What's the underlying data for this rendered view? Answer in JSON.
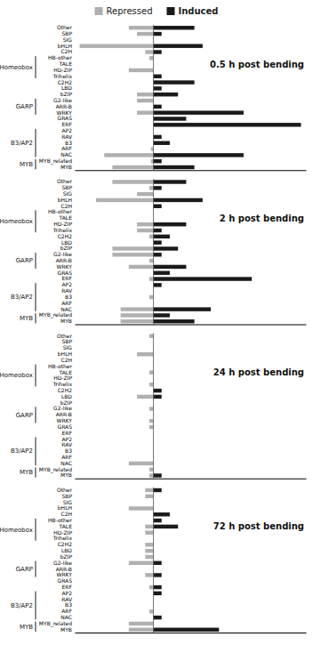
{
  "chart_data": [
    {
      "type": "bar",
      "orientation": "horizontal",
      "title": "0.5 h post bending",
      "legend": "top",
      "categories": [
        "Other",
        "SBP",
        "SIG",
        "bHLH",
        "C2H",
        "HB-other",
        "TALE",
        "HD-ZIP",
        "Trihelix",
        "C2H2",
        "LBD",
        "bZIP",
        "G2-like",
        "ARR-B",
        "WRKY",
        "GRAS",
        "ERF",
        "AP2",
        "RAV",
        "B3",
        "ARF",
        "NAC",
        "MYB_related",
        "MYB"
      ],
      "series": [
        {
          "name": "Repressed",
          "color": "#b0b0b0",
          "values": [
            3,
            2,
            0,
            9,
            1,
            0.5,
            0,
            3,
            0,
            0,
            0,
            2,
            2,
            0,
            2,
            0,
            0,
            0,
            0,
            0,
            0.3,
            6,
            0.3,
            5
          ]
        },
        {
          "name": "Induced",
          "color": "#1a1a1a",
          "values": [
            5,
            1,
            0,
            6,
            1,
            0,
            0,
            0,
            1,
            5,
            1,
            3,
            0,
            1,
            11,
            4,
            18,
            0,
            1,
            2,
            0,
            11,
            1,
            5
          ]
        }
      ],
      "xlim": [
        -9.6,
        18.6
      ],
      "xticks": [],
      "tick_labels": "y",
      "annotations": [
        {
          "text": "Homeobox",
          "from": "HB-other",
          "to": "Trihelix"
        },
        {
          "text": "GARP",
          "from": "G2-like",
          "to": "WRKY"
        },
        {
          "text": "B3/AP2",
          "from": "AP2",
          "to": "NAC"
        },
        {
          "text": "MYB",
          "from": "MYB_related",
          "to": "MYB"
        }
      ]
    },
    {
      "type": "bar",
      "orientation": "horizontal",
      "title": "2 h post bending",
      "categories": [
        "Other",
        "SBP",
        "SIG",
        "bHLH",
        "C2H",
        "HB-other",
        "TALE",
        "HD-ZIP",
        "Trihelix",
        "C2H2",
        "LBD",
        "bZIP",
        "G2-like",
        "ARR-B",
        "WRKY",
        "GRAS",
        "ERF",
        "AP2",
        "RAV",
        "B3",
        "ARF",
        "NAC",
        "MYB_related",
        "MYB"
      ],
      "series": [
        {
          "name": "Repressed",
          "color": "#b0b0b0",
          "values": [
            5,
            0.5,
            2,
            7,
            0,
            0,
            0,
            2,
            2,
            0.5,
            0,
            5,
            5,
            0.5,
            3,
            0,
            0.5,
            0,
            0,
            0.5,
            0,
            4,
            4,
            4
          ]
        },
        {
          "name": "Induced",
          "color": "#1a1a1a",
          "values": [
            4,
            1,
            0,
            6,
            1,
            0,
            0,
            4,
            1,
            2,
            1,
            3,
            1,
            0,
            4,
            2,
            12,
            1,
            0,
            0,
            0,
            7,
            2,
            5
          ]
        }
      ],
      "xlim": [
        -9.6,
        18.6
      ],
      "xticks": [],
      "tick_labels": "y",
      "annotations": [
        {
          "text": "Homeobox",
          "from": "HB-other",
          "to": "Trihelix"
        },
        {
          "text": "GARP",
          "from": "G2-like",
          "to": "WRKY"
        },
        {
          "text": "B3/AP2",
          "from": "AP2",
          "to": "NAC"
        },
        {
          "text": "MYB",
          "from": "MYB_related",
          "to": "MYB"
        }
      ]
    },
    {
      "type": "bar",
      "orientation": "horizontal",
      "title": "24 h post bending",
      "categories": [
        "Other",
        "SBP",
        "SIG",
        "bHLH",
        "C2H",
        "HB-other",
        "TALE",
        "HD-ZIP",
        "Trihelix",
        "C2H2",
        "LBD",
        "bZIP",
        "G2-like",
        "ARR-B",
        "WRKY",
        "GRAS",
        "ERF",
        "AP2",
        "RAV",
        "B3",
        "ARF",
        "NAC",
        "MYB_related",
        "MYB"
      ],
      "series": [
        {
          "name": "Repressed",
          "color": "#b0b0b0",
          "values": [
            0.5,
            0,
            0,
            2,
            0,
            0,
            0.5,
            0,
            0.5,
            0,
            2,
            0,
            0.5,
            0,
            0.5,
            0.5,
            0,
            0,
            0,
            0,
            0,
            3,
            0.5,
            0.5
          ]
        },
        {
          "name": "Induced",
          "color": "#1a1a1a",
          "values": [
            0,
            0,
            0,
            0,
            0,
            0,
            0,
            0,
            0,
            1,
            1,
            0,
            0,
            0,
            0,
            0,
            0,
            0,
            0,
            0,
            0,
            0,
            0,
            1
          ]
        }
      ],
      "xlim": [
        -9.6,
        18.6
      ],
      "xticks": [],
      "tick_labels": "y",
      "annotations": [
        {
          "text": "Homeobox",
          "from": "HB-other",
          "to": "Trihelix"
        },
        {
          "text": "GARP",
          "from": "G2-like",
          "to": "WRKY"
        },
        {
          "text": "B3/AP2",
          "from": "AP2",
          "to": "NAC"
        },
        {
          "text": "MYB",
          "from": "MYB_related",
          "to": "MYB"
        }
      ]
    },
    {
      "type": "bar",
      "orientation": "horizontal",
      "title": "72 h post bending",
      "categories": [
        "Other",
        "SBP",
        "SIG",
        "bHLH",
        "C2H",
        "HB-other",
        "TALE",
        "HD-ZIP",
        "Trihelix",
        "C2H2",
        "LBD",
        "bZIP",
        "G2-like",
        "ARR-B",
        "WRKY",
        "GRAS",
        "ERF",
        "AP2",
        "RAV",
        "B3",
        "ARF",
        "NAC",
        "MYB_related",
        "MYB"
      ],
      "series": [
        {
          "name": "Repressed",
          "color": "#b0b0b0",
          "values": [
            1,
            1,
            0,
            3,
            0,
            0,
            1,
            1,
            0,
            1,
            1,
            1,
            3,
            0,
            1,
            0,
            0.5,
            0,
            0,
            0,
            0.5,
            0,
            3,
            3
          ]
        },
        {
          "name": "Induced",
          "color": "#1a1a1a",
          "values": [
            1,
            0,
            0,
            0,
            2,
            1,
            3,
            0,
            0,
            0,
            0,
            0,
            1,
            0,
            1,
            0,
            1,
            1,
            0,
            0,
            0,
            1,
            0,
            8
          ]
        }
      ],
      "xlim": [
        -9.6,
        18.6
      ],
      "xticks": [],
      "tick_labels": "y",
      "annotations": [
        {
          "text": "Homeobox",
          "from": "HB-other",
          "to": "Trihelix"
        },
        {
          "text": "GARP",
          "from": "G2-like",
          "to": "WRKY"
        },
        {
          "text": "B3/AP2",
          "from": "AP2",
          "to": "NAC"
        },
        {
          "text": "MYB",
          "from": "MYB_related",
          "to": "MYB"
        }
      ]
    }
  ]
}
